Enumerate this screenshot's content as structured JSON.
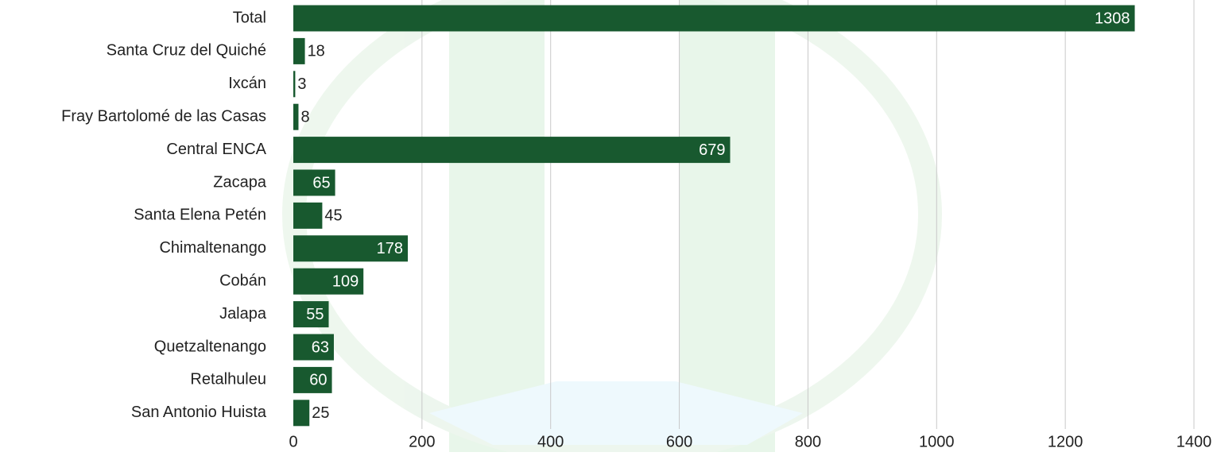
{
  "chart_data": {
    "type": "bar",
    "orientation": "horizontal",
    "categories": [
      "Total",
      "Santa Cruz del Quiché",
      "Ixcán",
      "Fray Bartolomé de las Casas",
      "Central ENCA",
      "Zacapa",
      "Santa Elena Petén",
      "Chimaltenango",
      "Cobán",
      "Jalapa",
      "Quetzaltenango",
      "Retalhuleu",
      "San Antonio Huista"
    ],
    "values": [
      1308,
      18,
      3,
      8,
      679,
      65,
      45,
      178,
      109,
      55,
      63,
      60,
      25
    ],
    "color": "#18592f",
    "xlim": [
      0,
      1400
    ],
    "xticks": [
      0,
      200,
      400,
      600,
      800,
      1000,
      1200,
      1400
    ],
    "grid": true
  }
}
